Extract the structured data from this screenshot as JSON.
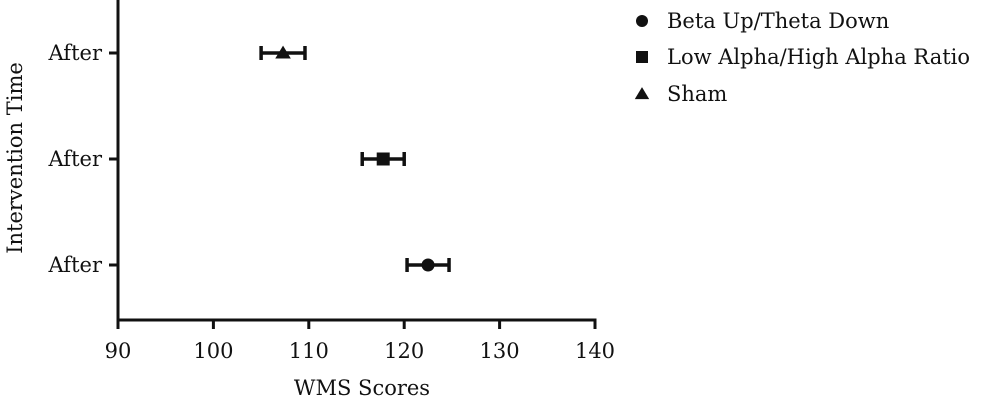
{
  "chart_data": {
    "type": "scatter",
    "orientation": "horizontal",
    "xlabel": "WMS Scores",
    "ylabel": "Intervention Time",
    "xlim": [
      90,
      140
    ],
    "xticks": [
      "90",
      "100",
      "110",
      "120",
      "130",
      "140"
    ],
    "categories": [
      "After",
      "After",
      "After"
    ],
    "legend_position": "top-right",
    "grid": false,
    "series": [
      {
        "name": "Beta Up/Theta Down",
        "marker": "circle",
        "category_index": 2,
        "mean": 122.5,
        "error_low": 120.3,
        "error_high": 124.7
      },
      {
        "name": "Low Alpha/High Alpha Ratio",
        "marker": "square",
        "category_index": 1,
        "mean": 117.8,
        "error_low": 115.6,
        "error_high": 120.0
      },
      {
        "name": "Sham",
        "marker": "triangle",
        "category_index": 0,
        "mean": 107.3,
        "error_low": 105.0,
        "error_high": 109.6
      }
    ]
  }
}
